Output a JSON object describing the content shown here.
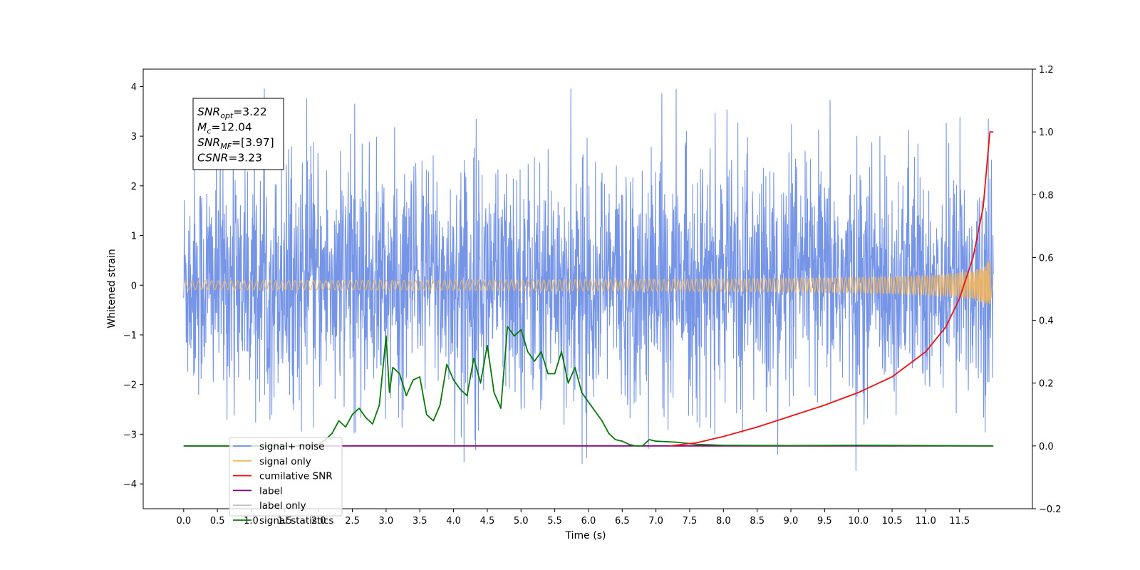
{
  "chart_data": {
    "type": "line",
    "xlabel": "Time (s)",
    "ylabel": "Whitened strain",
    "xlim": [
      -0.6,
      12.58
    ],
    "ylim": [
      -4.5,
      4.35
    ],
    "y2lim": [
      -0.2,
      1.2
    ],
    "x_ticks": [
      0.0,
      0.5,
      1.0,
      1.5,
      2.0,
      2.5,
      3.0,
      3.5,
      4.0,
      4.5,
      5.0,
      5.5,
      6.0,
      6.5,
      7.0,
      7.5,
      8.0,
      8.5,
      9.0,
      9.5,
      10.0,
      10.5,
      11.0,
      11.5
    ],
    "x_tick_labels": [
      "0.0",
      "0.5",
      "1.0",
      "1.5",
      "2.0",
      "2.5",
      "3.0",
      "3.5",
      "4.0",
      "4.5",
      "5.0",
      "5.5",
      "6.0",
      "6.5",
      "7.0",
      "7.5",
      "8.0",
      "8.5",
      "9.0",
      "9.5",
      "10.0",
      "10.5",
      "11.0",
      "11.5"
    ],
    "y_ticks": [
      -4,
      -3,
      -2,
      -1,
      0,
      1,
      2,
      3,
      4
    ],
    "y_tick_labels": [
      "−4",
      "−3",
      "−2",
      "−1",
      "0",
      "1",
      "2",
      "3",
      "4"
    ],
    "y2_ticks": [
      -0.2,
      0.0,
      0.2,
      0.4,
      0.6,
      0.8,
      1.0,
      1.2
    ],
    "y2_tick_labels": [
      "−0.2",
      "0.0",
      "0.2",
      "0.4",
      "0.6",
      "0.8",
      "1.0",
      "1.2"
    ],
    "grid": false,
    "legend_position": "lower-left",
    "annotation": {
      "lines": [
        {
          "sym": "SNR",
          "sub": "opt",
          "val": "=3.22"
        },
        {
          "sym": "M",
          "sub": "c",
          "val": "=12.04"
        },
        {
          "sym": "SNR",
          "sub": "MF",
          "val": "=[3.97]"
        },
        {
          "sym": "CSNR",
          "sub": "",
          "val": "=3.23"
        }
      ]
    },
    "series": [
      {
        "name": "signal+ noise",
        "color": "#6f8fe6",
        "axis": "left",
        "style": "noise",
        "x_range": [
          0.0,
          12.0
        ],
        "typical_range": [
          -2.0,
          2.2
        ],
        "extreme_range": [
          -4.1,
          3.95
        ]
      },
      {
        "name": "signal only",
        "color": "#f5b75a",
        "axis": "left",
        "style": "chirp",
        "x_range": [
          0.0,
          12.0
        ],
        "peak_amplitude": 0.7,
        "peak_time": 11.97
      },
      {
        "name": "cumilative SNR",
        "color": "#ee1111",
        "axis": "right",
        "x": [
          7.2,
          7.6,
          8.0,
          8.5,
          9.0,
          9.5,
          10.0,
          10.5,
          11.0,
          11.3,
          11.5,
          11.7,
          11.85,
          11.95,
          12.0
        ],
        "y": [
          0.0,
          0.01,
          0.03,
          0.06,
          0.095,
          0.13,
          0.17,
          0.22,
          0.3,
          0.38,
          0.47,
          0.6,
          0.76,
          1.0,
          1.0
        ]
      },
      {
        "name": "label",
        "color": "#800080",
        "axis": "right",
        "x": [
          0.0,
          12.0
        ],
        "y": [
          0.0,
          0.0
        ]
      },
      {
        "name": "label only",
        "color": "#c0c0c0",
        "axis": "right",
        "x": [],
        "y": []
      },
      {
        "name": "signal statistics",
        "color": "#087808",
        "axis": "right",
        "x": [
          0.0,
          1.0,
          1.5,
          2.0,
          2.1,
          2.2,
          2.3,
          2.4,
          2.5,
          2.6,
          2.7,
          2.8,
          2.9,
          3.0,
          3.05,
          3.1,
          3.2,
          3.3,
          3.4,
          3.5,
          3.6,
          3.7,
          3.8,
          3.9,
          4.0,
          4.1,
          4.2,
          4.3,
          4.4,
          4.5,
          4.6,
          4.7,
          4.8,
          4.9,
          5.0,
          5.1,
          5.2,
          5.3,
          5.4,
          5.5,
          5.6,
          5.7,
          5.8,
          5.9,
          6.0,
          6.1,
          6.2,
          6.3,
          6.4,
          6.5,
          6.6,
          6.7,
          6.8,
          6.9,
          7.0,
          7.3,
          7.6,
          8.0,
          9.0,
          10.0,
          12.0
        ],
        "y": [
          0.0,
          0.0,
          0.0,
          0.005,
          0.02,
          0.04,
          0.08,
          0.06,
          0.1,
          0.12,
          0.09,
          0.07,
          0.13,
          0.35,
          0.17,
          0.25,
          0.23,
          0.16,
          0.21,
          0.22,
          0.1,
          0.08,
          0.13,
          0.26,
          0.21,
          0.18,
          0.16,
          0.28,
          0.2,
          0.32,
          0.17,
          0.12,
          0.38,
          0.35,
          0.37,
          0.3,
          0.27,
          0.3,
          0.23,
          0.23,
          0.3,
          0.2,
          0.25,
          0.17,
          0.14,
          0.11,
          0.08,
          0.04,
          0.02,
          0.015,
          0.005,
          0.0,
          0.0,
          0.02,
          0.015,
          0.012,
          0.005,
          0.002,
          0.001,
          0.002,
          0.0
        ]
      }
    ]
  }
}
